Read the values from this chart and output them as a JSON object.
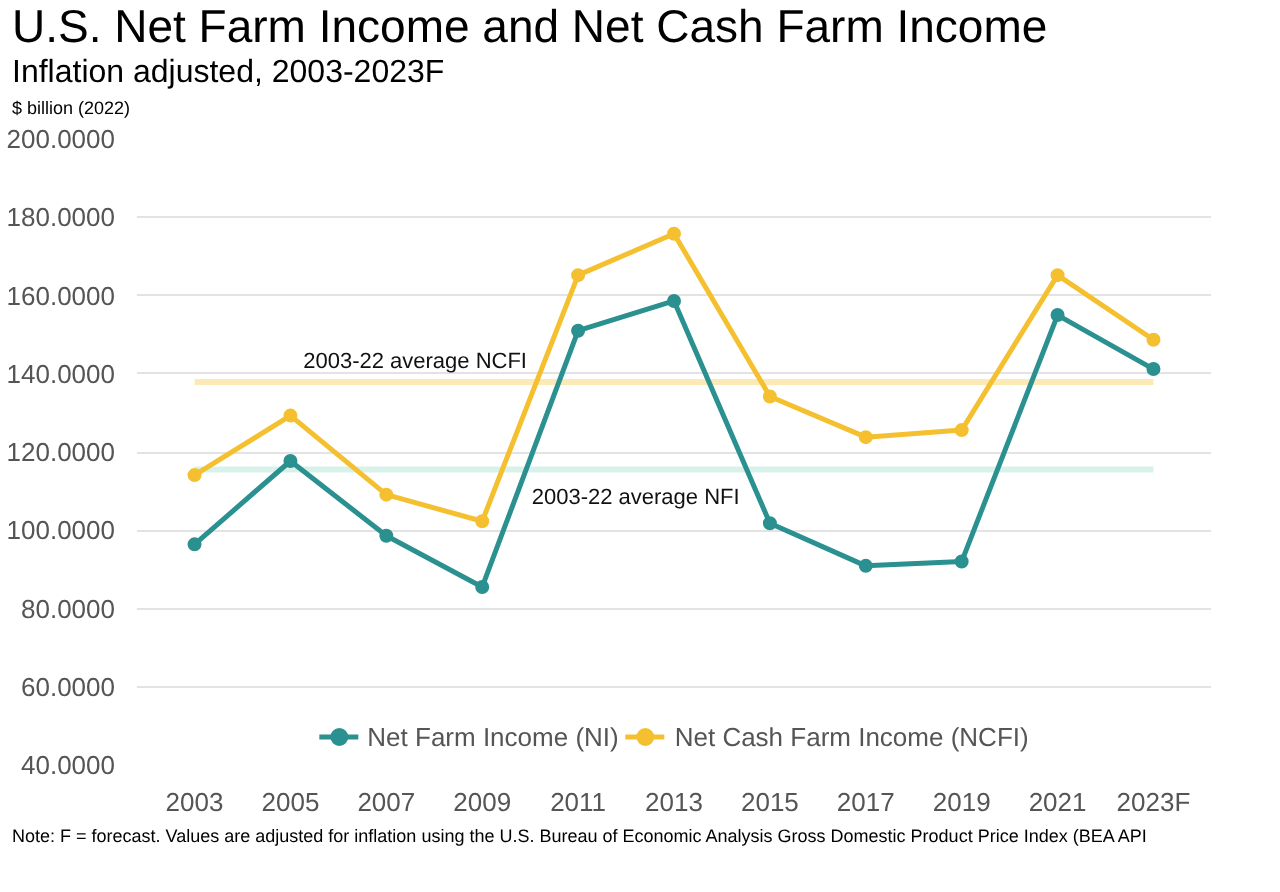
{
  "chart_data": {
    "type": "line",
    "title": "U.S. Net Farm Income and Net Cash Farm Income",
    "subtitle": "Inflation adjusted, 2003-2023F",
    "ylabel": "$ billion (2022)",
    "categories": [
      "2003",
      "2005",
      "2007",
      "2009",
      "2011",
      "2013",
      "2015",
      "2017",
      "2019",
      "2021",
      "2023F"
    ],
    "series": [
      {
        "name": "Net Farm Income (NI)",
        "color": "#2a9090",
        "values": [
          96.4,
          117.7,
          98.6,
          85.5,
          151.0,
          158.6,
          101.8,
          90.9,
          92.0,
          155.0,
          141.2
        ]
      },
      {
        "name": "Net Cash Farm Income (NCFI)",
        "color": "#f5c030",
        "values": [
          114.1,
          129.3,
          109.1,
          102.3,
          165.2,
          175.8,
          134.2,
          123.8,
          125.6,
          165.2,
          148.7
        ]
      }
    ],
    "ylim": [
      40,
      200
    ],
    "yticks": [
      {
        "value": 40,
        "label": "40.0000"
      },
      {
        "value": 60,
        "label": "60.0000"
      },
      {
        "value": 80,
        "label": "80.0000"
      },
      {
        "value": 100,
        "label": "100.0000"
      },
      {
        "value": 120,
        "label": "120.0000"
      },
      {
        "value": 140,
        "label": "140.0000"
      },
      {
        "value": 160,
        "label": "160.0000"
      },
      {
        "value": 180,
        "label": "180.0000"
      },
      {
        "value": 200,
        "label": "200.0000"
      }
    ],
    "ref_lines": [
      {
        "axis": "y",
        "value": 137.9,
        "label": "2003-22 average NCFI",
        "color": "#fbeab5"
      },
      {
        "axis": "y",
        "value": 115.5,
        "label": "2003-22 average NFI",
        "color": "#d8f1ea"
      }
    ],
    "annotations": [
      "Note: F = forecast. Values are adjusted for inflation using the U.S. Bureau of Economic Analysis Gross Domestic Product Price Index (BEA API"
    ],
    "grid": "y",
    "legend": "bottom",
    "marker": "circle",
    "line_style": "solid"
  }
}
